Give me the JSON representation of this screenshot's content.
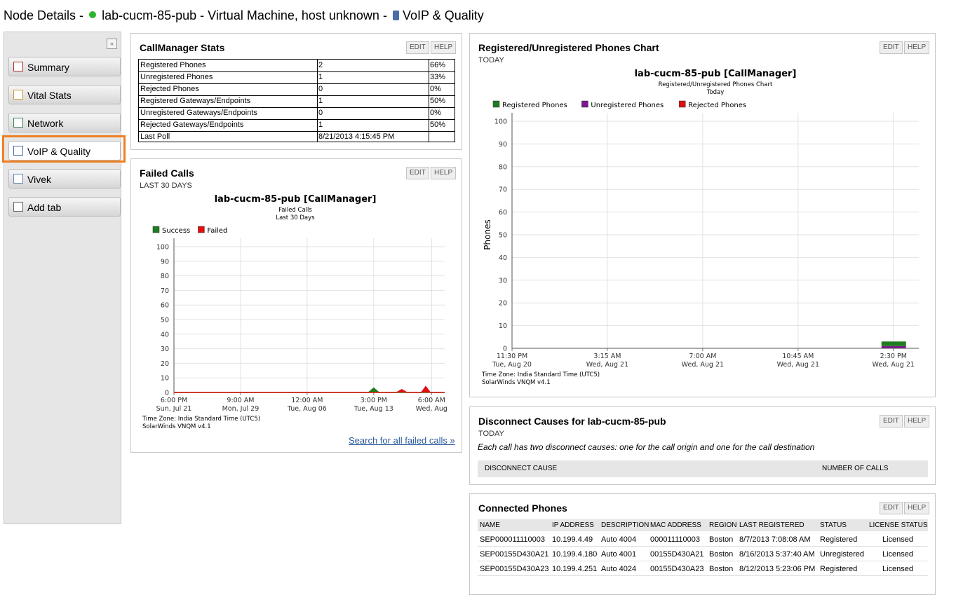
{
  "header": {
    "prefix": "Node Details -",
    "node": "lab-cucm-85-pub - Virtual Machine, host unknown -",
    "view": "VoIP & Quality"
  },
  "sidebar": {
    "tabs": [
      "Summary",
      "Vital Stats",
      "Network",
      "VoIP & Quality",
      "Vivek",
      "Add tab"
    ],
    "active": 3
  },
  "buttons": [
    "EDIT",
    "HELP"
  ],
  "callmanager_stats": {
    "title": "CallManager Stats",
    "rows": [
      [
        "Registered Phones",
        "2",
        "66%"
      ],
      [
        "Unregistered Phones",
        "1",
        "33%"
      ],
      [
        "Rejected Phones",
        "0",
        "0%"
      ],
      [
        "Registered Gateways/Endpoints",
        "1",
        "50%"
      ],
      [
        "Unregistered Gateways/Endpoints",
        "0",
        "0%"
      ],
      [
        "Rejected Gateways/Endpoints",
        "1",
        "50%"
      ],
      [
        "Last Poll",
        "8/21/2013 4:15:45 PM"
      ]
    ]
  },
  "failed_calls": {
    "title": "Failed Calls",
    "period": "LAST 30 DAYS",
    "link": "Search for all failed calls »",
    "chart": {
      "type": "line",
      "title": "lab-cucm-85-pub [CallManager]",
      "subtitle": [
        "Failed Calls",
        "Last 30 Days"
      ],
      "series": [
        {
          "name": "Success",
          "color": "#1e7b1e",
          "x": [
            0,
            535,
            549,
            563,
            744
          ],
          "values": [
            0,
            0,
            3,
            0,
            0
          ]
        },
        {
          "name": "Failed",
          "color": "#e01010",
          "x": [
            0,
            612,
            626,
            640,
            680,
            692,
            704,
            744
          ],
          "values": [
            0,
            0,
            2,
            0,
            0,
            4,
            0,
            0
          ]
        }
      ],
      "xlim": [
        0,
        744
      ],
      "xticks": [
        {
          "value": 0,
          "label": "6:00 PM",
          "date": "Sun, Jul 21"
        },
        {
          "value": 183,
          "label": "9:00 AM",
          "date": "Mon, Jul 29"
        },
        {
          "value": 366,
          "label": "12:00 AM",
          "date": "Tue, Aug 06"
        },
        {
          "value": 549,
          "label": "3:00 PM",
          "date": "Tue, Aug 13"
        },
        {
          "value": 708,
          "label": "6:00 AM",
          "date": "Wed, Aug"
        }
      ],
      "ylim": [
        0,
        100
      ],
      "yticks": [
        0,
        10,
        20,
        30,
        40,
        50,
        60,
        70,
        80,
        90,
        100
      ],
      "grid": true,
      "footer": [
        "Time Zone: India Standard Time (UTC5)",
        "SolarWinds VNQM v4.1"
      ]
    }
  },
  "phones_chart": {
    "title": "Registered/Unregistered Phones Chart",
    "period": "TODAY",
    "chart": {
      "type": "bar",
      "stacked": true,
      "title": "lab-cucm-85-pub [CallManager]",
      "subtitle": [
        "Registered/Unregistered Phones Chart",
        "Today"
      ],
      "ylabel": "Phones",
      "series": [
        {
          "name": "Registered Phones",
          "color": "#1e7b1e",
          "x": [
            15
          ],
          "values": [
            2
          ]
        },
        {
          "name": "Unregistered Phones",
          "color": "#7a1a8a",
          "x": [
            15
          ],
          "values": [
            1
          ]
        },
        {
          "name": "Rejected Phones",
          "color": "#e01010",
          "x": [
            15
          ],
          "values": [
            0
          ]
        }
      ],
      "xlim": [
        0,
        16
      ],
      "xticks": [
        {
          "value": 0,
          "label": "11:30 PM",
          "date": "Tue, Aug 20"
        },
        {
          "value": 3.75,
          "label": "3:15 AM",
          "date": "Wed, Aug 21"
        },
        {
          "value": 7.5,
          "label": "7:00 AM",
          "date": "Wed, Aug 21"
        },
        {
          "value": 11.25,
          "label": "10:45 AM",
          "date": "Wed, Aug 21"
        },
        {
          "value": 15,
          "label": "2:30 PM",
          "date": "Wed, Aug 21"
        }
      ],
      "ylim": [
        0,
        100
      ],
      "yticks": [
        0,
        10,
        20,
        30,
        40,
        50,
        60,
        70,
        80,
        90,
        100
      ],
      "grid": true,
      "footer": [
        "Time Zone: India Standard Time (UTC5)",
        "SolarWinds VNQM v4.1"
      ]
    }
  },
  "disconnect_causes": {
    "title": "Disconnect Causes for lab-cucm-85-pub",
    "period": "TODAY",
    "note": "Each call has two disconnect causes: one for the call origin and one for the call destination",
    "columns": [
      "DISCONNECT CAUSE",
      "NUMBER OF CALLS"
    ]
  },
  "connected_phones": {
    "title": "Connected Phones",
    "columns": [
      "NAME",
      "IP ADDRESS",
      "DESCRIPTION",
      "MAC ADDRESS",
      "REGION",
      "LAST REGISTERED",
      "STATUS",
      "LICENSE STATUS"
    ],
    "rows": [
      [
        "SEP000011110003",
        "10.199.4.49",
        "Auto 4004",
        "000011110003",
        "Boston",
        "8/7/2013 7:08:08 AM",
        "Registered",
        "Licensed"
      ],
      [
        "SEP00155D430A21",
        "10.199.4.180",
        "Auto 4001",
        "00155D430A21",
        "Boston",
        "8/16/2013 5:37:40 AM",
        "Unregistered",
        "Licensed"
      ],
      [
        "SEP00155D430A23",
        "10.199.4.251",
        "Auto 4024",
        "00155D430A23",
        "Boston",
        "8/12/2013 5:23:06 PM",
        "Registered",
        "Licensed"
      ]
    ]
  }
}
